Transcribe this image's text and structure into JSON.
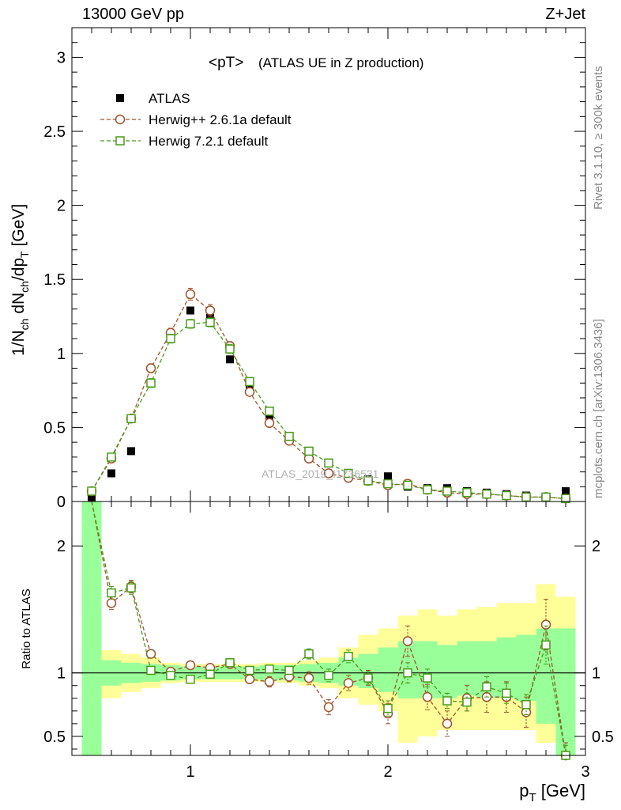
{
  "header": {
    "left": "13000 GeV pp",
    "right": "Z+Jet"
  },
  "side_labels": {
    "rivet": "Rivet 3.1.10, ≥ 300k events",
    "mcplots": "mcplots.cern.ch [arXiv:1306.3436]"
  },
  "watermark": "ATLAS_2019_I1736531",
  "chart_data": [
    {
      "type": "scatter",
      "title": "<pT>",
      "subtitle": "(ATLAS UE in Z production)",
      "ylabel": "1/N_ch dN_ch/dp_T [GeV]",
      "xlabel": "",
      "xlim": [
        0.4,
        3.0
      ],
      "ylim": [
        0,
        3.2
      ],
      "x_ticks": [
        1,
        2,
        3
      ],
      "y_ticks": [
        0,
        0.5,
        1,
        1.5,
        2,
        2.5,
        3
      ],
      "y_tick_labels": [
        "0",
        "0.5",
        "1",
        "1.5",
        "2",
        "2.5",
        "3"
      ],
      "legend_placement": "top-left",
      "x": [
        0.5,
        0.6,
        0.7,
        0.8,
        0.9,
        1.0,
        1.1,
        1.2,
        1.3,
        1.4,
        1.5,
        1.6,
        1.7,
        1.8,
        1.9,
        2.0,
        2.1,
        2.2,
        2.3,
        2.4,
        2.5,
        2.6,
        2.7,
        2.8,
        2.9
      ],
      "series": [
        {
          "name": "ATLAS",
          "color": "#000000",
          "marker": "filled-square",
          "values": [
            0.03,
            0.19,
            0.34,
            0.8,
            1.13,
            1.29,
            1.24,
            0.96,
            0.79,
            0.58,
            0.43,
            0.3,
            0.26,
            0.18,
            0.15,
            0.17,
            0.1,
            0.09,
            0.09,
            0.07,
            0.06,
            0.05,
            0.04,
            0.03,
            0.07
          ]
        },
        {
          "name": "Herwig++ 2.6.1a default",
          "color": "#a0522d",
          "marker": "open-circle",
          "values": [
            0.07,
            0.29,
            0.56,
            0.9,
            1.14,
            1.4,
            1.29,
            1.05,
            0.74,
            0.53,
            0.41,
            0.29,
            0.19,
            0.16,
            0.14,
            0.11,
            0.12,
            0.08,
            0.06,
            0.05,
            0.05,
            0.04,
            0.03,
            0.03,
            0.02
          ],
          "errors": [
            0.01,
            0.02,
            0.02,
            0.03,
            0.03,
            0.04,
            0.04,
            0.03,
            0.02,
            0.02,
            0.02,
            0.01,
            0.01,
            0.01,
            0.01,
            0.01,
            0.01,
            0.01,
            0.01,
            0.01,
            0.01,
            0.01,
            0.01,
            0.01,
            0.01
          ]
        },
        {
          "name": "Herwig 7.2.1 default",
          "color": "#4a9a1a",
          "marker": "open-square",
          "values": [
            0.07,
            0.3,
            0.56,
            0.8,
            1.1,
            1.2,
            1.21,
            1.03,
            0.81,
            0.61,
            0.44,
            0.34,
            0.26,
            0.19,
            0.14,
            0.12,
            0.11,
            0.08,
            0.07,
            0.06,
            0.05,
            0.04,
            0.03,
            0.03,
            0.02
          ],
          "errors": [
            0.01,
            0.02,
            0.02,
            0.03,
            0.03,
            0.03,
            0.03,
            0.03,
            0.02,
            0.02,
            0.02,
            0.01,
            0.01,
            0.01,
            0.01,
            0.01,
            0.01,
            0.01,
            0.01,
            0.01,
            0.01,
            0.01,
            0.01,
            0.01,
            0.01
          ]
        }
      ]
    },
    {
      "type": "scatter",
      "title": "",
      "ylabel": "Ratio to ATLAS",
      "xlabel": "p_T [GeV]",
      "xlim": [
        0.4,
        3.0
      ],
      "ylim": [
        0.35,
        2.35
      ],
      "x_ticks": [
        1,
        2,
        3
      ],
      "x_tick_labels": [
        "1",
        "2",
        "3"
      ],
      "y_ticks": [
        0.5,
        1,
        2
      ],
      "y_tick_labels": [
        "0.5",
        "1",
        "2"
      ],
      "reference_line": 1,
      "x": [
        0.5,
        0.6,
        0.7,
        0.8,
        0.9,
        1.0,
        1.1,
        1.2,
        1.3,
        1.4,
        1.5,
        1.6,
        1.7,
        1.8,
        1.9,
        2.0,
        2.1,
        2.2,
        2.3,
        2.4,
        2.5,
        2.6,
        2.7,
        2.8,
        2.9
      ],
      "bands": {
        "stat": {
          "color": "#99ff99",
          "lo": [
            0.1,
            0.9,
            0.92,
            0.93,
            0.94,
            0.95,
            0.95,
            0.95,
            0.95,
            0.94,
            0.94,
            0.93,
            0.92,
            0.9,
            0.88,
            0.85,
            0.8,
            0.8,
            0.8,
            0.82,
            0.8,
            0.8,
            0.78,
            0.6,
            0.1
          ],
          "hi": [
            2.4,
            1.1,
            1.08,
            1.07,
            1.06,
            1.05,
            1.05,
            1.05,
            1.05,
            1.06,
            1.06,
            1.07,
            1.08,
            1.12,
            1.15,
            1.2,
            1.25,
            1.25,
            1.22,
            1.25,
            1.25,
            1.28,
            1.3,
            1.35,
            1.35
          ]
        },
        "total": {
          "color": "#ffff99",
          "lo": [
            0.1,
            0.8,
            0.85,
            0.88,
            0.92,
            0.93,
            0.93,
            0.93,
            0.93,
            0.93,
            0.92,
            0.9,
            0.88,
            0.8,
            0.75,
            0.7,
            0.45,
            0.5,
            0.55,
            0.55,
            0.55,
            0.55,
            0.55,
            0.45,
            0.1
          ],
          "hi": [
            2.4,
            1.18,
            1.15,
            1.12,
            1.08,
            1.07,
            1.07,
            1.07,
            1.07,
            1.08,
            1.08,
            1.1,
            1.12,
            1.2,
            1.3,
            1.35,
            1.45,
            1.5,
            1.45,
            1.5,
            1.52,
            1.55,
            1.55,
            1.7,
            1.6
          ]
        }
      },
      "series": [
        {
          "name": "Herwig++ 2.6.1a default",
          "color": "#a0522d",
          "marker": "open-circle",
          "values": [
            2.4,
            1.55,
            1.68,
            1.15,
            1.01,
            1.06,
            1.04,
            1.07,
            0.95,
            0.93,
            0.97,
            0.96,
            0.73,
            0.92,
            0.96,
            0.68,
            1.25,
            0.81,
            0.6,
            0.8,
            0.81,
            0.81,
            0.69,
            1.38,
            0.35
          ],
          "errors": [
            0.05,
            0.05,
            0.05,
            0.03,
            0.03,
            0.03,
            0.03,
            0.03,
            0.03,
            0.04,
            0.04,
            0.05,
            0.06,
            0.06,
            0.06,
            0.08,
            0.12,
            0.1,
            0.1,
            0.1,
            0.12,
            0.12,
            0.12,
            0.2,
            0.1
          ]
        },
        {
          "name": "Herwig 7.2.1 default",
          "color": "#4a9a1a",
          "marker": "open-square",
          "values": [
            2.4,
            1.63,
            1.67,
            1.02,
            0.98,
            0.95,
            0.99,
            1.08,
            1.02,
            1.03,
            1.02,
            1.15,
            0.98,
            1.13,
            0.96,
            0.72,
            1.0,
            0.96,
            0.78,
            0.77,
            0.89,
            0.84,
            0.75,
            1.22,
            0.35
          ],
          "errors": [
            0.05,
            0.05,
            0.05,
            0.03,
            0.03,
            0.03,
            0.03,
            0.03,
            0.03,
            0.03,
            0.03,
            0.04,
            0.05,
            0.05,
            0.05,
            0.06,
            0.08,
            0.07,
            0.06,
            0.07,
            0.08,
            0.08,
            0.08,
            0.15,
            0.08
          ]
        }
      ]
    }
  ]
}
